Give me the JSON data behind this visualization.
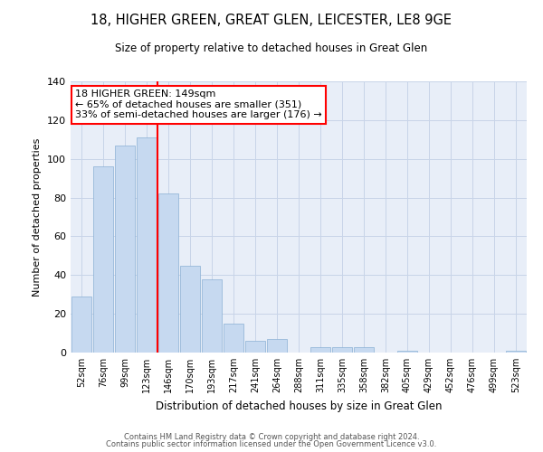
{
  "title1": "18, HIGHER GREEN, GREAT GLEN, LEICESTER, LE8 9GE",
  "title2": "Size of property relative to detached houses in Great Glen",
  "xlabel": "Distribution of detached houses by size in Great Glen",
  "ylabel": "Number of detached properties",
  "categories": [
    "52sqm",
    "76sqm",
    "99sqm",
    "123sqm",
    "146sqm",
    "170sqm",
    "193sqm",
    "217sqm",
    "241sqm",
    "264sqm",
    "288sqm",
    "311sqm",
    "335sqm",
    "358sqm",
    "382sqm",
    "405sqm",
    "429sqm",
    "452sqm",
    "476sqm",
    "499sqm",
    "523sqm"
  ],
  "values": [
    29,
    96,
    107,
    111,
    82,
    45,
    38,
    15,
    6,
    7,
    0,
    3,
    3,
    3,
    0,
    1,
    0,
    0,
    0,
    0,
    1
  ],
  "bar_color": "#c6d9f0",
  "bar_edge_color": "#8ab0d4",
  "grid_color": "#c8d4e8",
  "background_color": "#e8eef8",
  "vline_color": "red",
  "vline_index": 4,
  "annotation_text": "18 HIGHER GREEN: 149sqm\n← 65% of detached houses are smaller (351)\n33% of semi-detached houses are larger (176) →",
  "annotation_box_color": "white",
  "annotation_box_edge_color": "red",
  "ylim": [
    0,
    140
  ],
  "yticks": [
    0,
    20,
    40,
    60,
    80,
    100,
    120,
    140
  ],
  "footer1": "Contains HM Land Registry data © Crown copyright and database right 2024.",
  "footer2": "Contains public sector information licensed under the Open Government Licence v3.0."
}
